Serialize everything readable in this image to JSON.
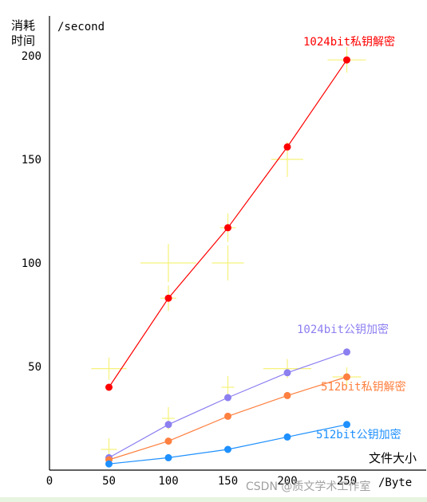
{
  "chart_data": {
    "type": "line",
    "y_unit_label": "/second",
    "y_axis_title": [
      "消耗",
      "时间"
    ],
    "x_axis_title": "文件大小",
    "x_unit_label": "/Byte",
    "x_ticks": [
      0,
      50,
      100,
      150,
      200,
      250
    ],
    "y_ticks": [
      50,
      100,
      150,
      200
    ],
    "xlim": [
      0,
      290
    ],
    "ylim": [
      0,
      220
    ],
    "grid": false,
    "x": [
      50,
      100,
      150,
      200,
      250
    ],
    "series": [
      {
        "name": "1024bit私钥解密",
        "color": "#ff0000",
        "values": [
          40,
          83,
          117,
          156,
          198
        ]
      },
      {
        "name": "1024bit公钥加密",
        "color": "#8c7ff0",
        "values": [
          6,
          22,
          35,
          47,
          57
        ]
      },
      {
        "name": "512bit私钥解密",
        "color": "#ff8040",
        "values": [
          5,
          14,
          26,
          36,
          45
        ]
      },
      {
        "name": "512bit公钥加密",
        "color": "#1e90ff",
        "values": [
          3,
          6,
          10,
          16,
          22
        ]
      }
    ],
    "watermark": "CSDN @质文学术工作室"
  }
}
